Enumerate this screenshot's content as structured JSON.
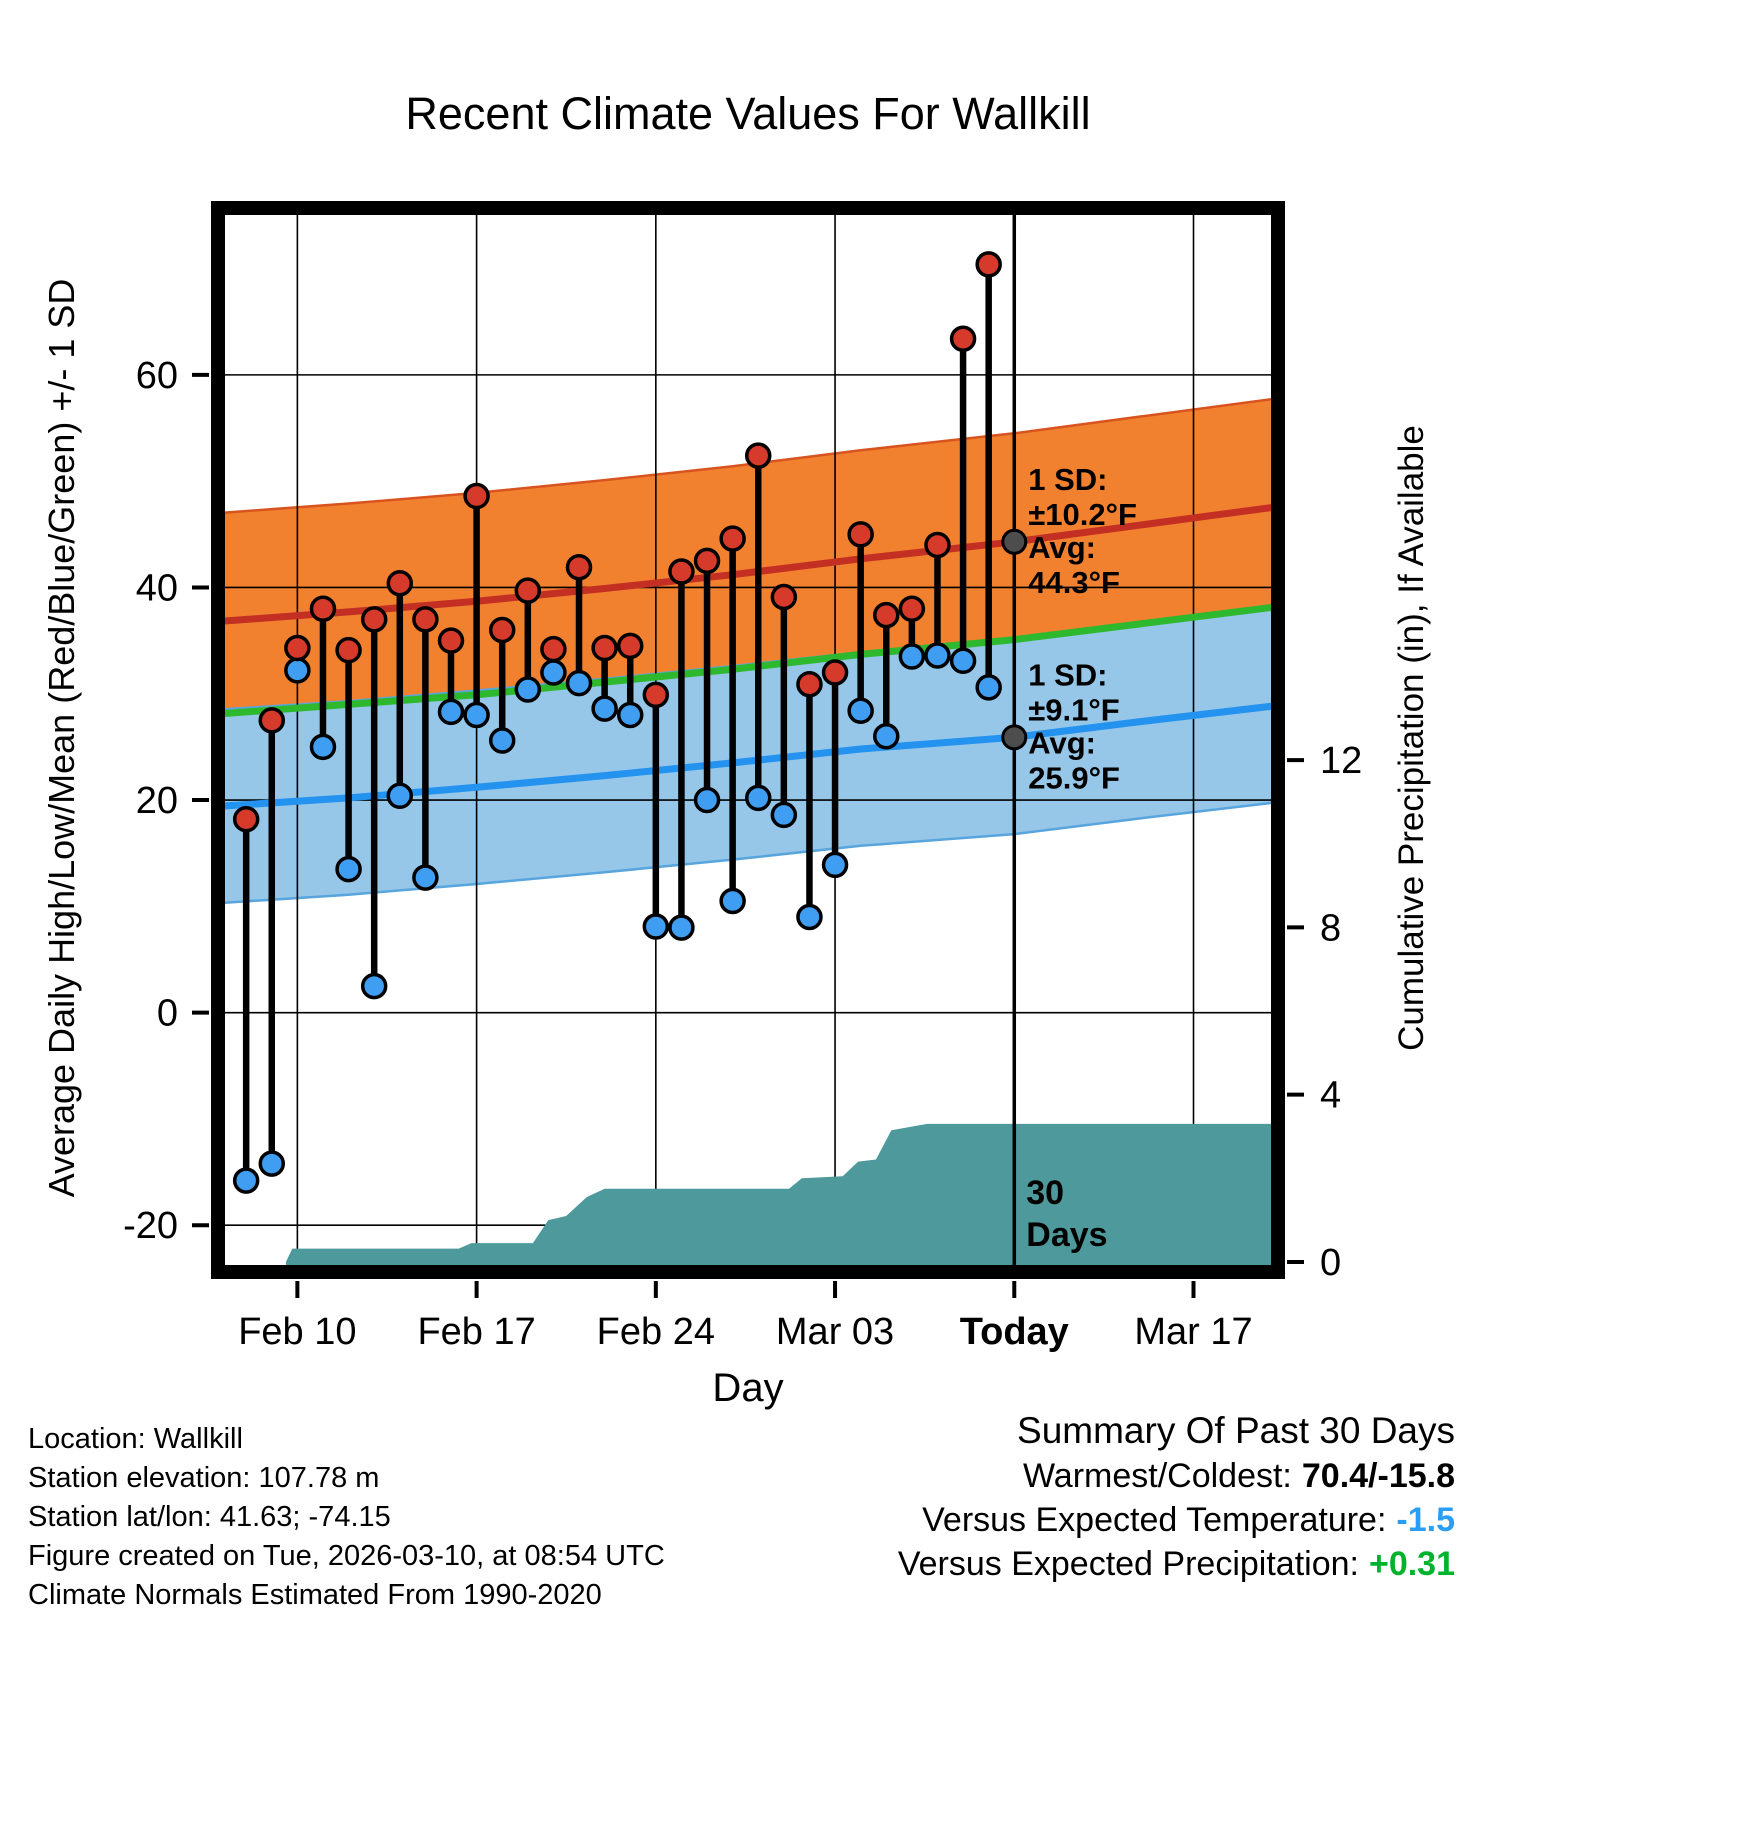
{
  "footer_left": [
    "Location: Wallkill",
    "Station elevation: 107.78 m",
    "Station lat/lon: 41.63; -74.15",
    "Figure created on Tue, 2026-03-10, at 08:54 UTC",
    "Climate Normals Estimated From 1990-2020"
  ],
  "summary": {
    "heading": "Summary Of Past 30 Days",
    "warmest_coldest_label": "Warmest/Coldest:",
    "warmest_coldest_value": "70.4/-15.8",
    "vs_temp_label": "Versus Expected Temperature:",
    "vs_temp_value": "-1.5",
    "vs_precip_label": "Versus Expected Precipitation:",
    "vs_precip_value": "+0.31"
  },
  "chart_data": {
    "type": "line",
    "title": "Recent Climate Values For Wallkill",
    "xlabel": "Day",
    "ylabel_left": "Average Daily High/Low/Mean (Red/Blue/Green) +/- 1 SD",
    "ylabel_right": "Cumulative Precipitation (in), If Available",
    "x_axis": {
      "min": -1.1,
      "max": 40.3,
      "ticks": [
        {
          "day": 2,
          "label": "Feb 10",
          "bold": false
        },
        {
          "day": 9,
          "label": "Feb 17",
          "bold": false
        },
        {
          "day": 16,
          "label": "Feb 24",
          "bold": false
        },
        {
          "day": 23,
          "label": "Mar 03",
          "bold": false
        },
        {
          "day": 30,
          "label": "Today",
          "bold": true
        },
        {
          "day": 37,
          "label": "Mar 17",
          "bold": false
        }
      ]
    },
    "temp_axis": {
      "min": -24.4,
      "max": 75.7,
      "ticks": [
        -20,
        0,
        20,
        40,
        60
      ]
    },
    "precip_axis": {
      "min": -0.24,
      "max": 25.2,
      "ticks": [
        0,
        4,
        8,
        12
      ]
    },
    "today_day": 30,
    "climatology": {
      "days": [
        -1.1,
        4,
        9,
        14,
        19,
        24,
        30,
        35,
        40.3
      ],
      "avg_high": [
        36.8,
        37.7,
        38.7,
        39.9,
        41.2,
        42.7,
        44.3,
        45.9,
        47.6
      ],
      "avg_low": [
        19.4,
        20.2,
        21.2,
        22.3,
        23.5,
        24.8,
        25.9,
        27.4,
        28.9
      ],
      "mean": [
        28.1,
        29.0,
        29.9,
        31.1,
        32.3,
        33.7,
        35.1,
        36.6,
        38.2
      ],
      "high_sd": 10.2,
      "low_sd": 9.1
    },
    "daily": [
      {
        "day": 0,
        "high": 18.2,
        "low": -15.8
      },
      {
        "day": 1,
        "high": 27.5,
        "low": -14.2
      },
      {
        "day": 2,
        "high": 34.3,
        "low": 32.2
      },
      {
        "day": 3,
        "high": 38.0,
        "low": 25.0
      },
      {
        "day": 4,
        "high": 34.1,
        "low": 13.5
      },
      {
        "day": 5,
        "high": 37.0,
        "low": 2.5
      },
      {
        "day": 6,
        "high": 40.4,
        "low": 20.4
      },
      {
        "day": 7,
        "high": 37.0,
        "low": 12.7
      },
      {
        "day": 8,
        "high": 35.0,
        "low": 28.3
      },
      {
        "day": 9,
        "high": 48.6,
        "low": 28.0
      },
      {
        "day": 10,
        "high": 36.0,
        "low": 25.6
      },
      {
        "day": 11,
        "high": 39.7,
        "low": 30.4
      },
      {
        "day": 12,
        "high": 34.2,
        "low": 32.0
      },
      {
        "day": 13,
        "high": 41.9,
        "low": 31.0
      },
      {
        "day": 14,
        "high": 34.3,
        "low": 28.6
      },
      {
        "day": 15,
        "high": 34.5,
        "low": 28.0
      },
      {
        "day": 16,
        "high": 29.9,
        "low": 8.1
      },
      {
        "day": 17,
        "high": 41.5,
        "low": 8.0
      },
      {
        "day": 18,
        "high": 42.5,
        "low": 20.0
      },
      {
        "day": 19,
        "high": 44.6,
        "low": 10.5
      },
      {
        "day": 20,
        "high": 52.4,
        "low": 20.2
      },
      {
        "day": 21,
        "high": 39.1,
        "low": 18.6
      },
      {
        "day": 22,
        "high": 30.9,
        "low": 9.0
      },
      {
        "day": 23,
        "high": 32.0,
        "low": 13.9
      },
      {
        "day": 24,
        "high": 45.0,
        "low": 28.4
      },
      {
        "day": 25,
        "high": 37.4,
        "low": 26.0
      },
      {
        "day": 26,
        "high": 38.0,
        "low": 33.5
      },
      {
        "day": 27,
        "high": 44.0,
        "low": 33.6
      },
      {
        "day": 28,
        "high": 63.4,
        "low": 33.1
      },
      {
        "day": 29,
        "high": 70.4,
        "low": 30.6
      }
    ],
    "precip_steps": [
      {
        "day": 1.55,
        "value": 0
      },
      {
        "day": 1.8,
        "value": 0.32
      },
      {
        "day": 8.3,
        "value": 0.32
      },
      {
        "day": 8.8,
        "value": 0.45
      },
      {
        "day": 11.2,
        "value": 0.45
      },
      {
        "day": 11.8,
        "value": 1.0
      },
      {
        "day": 12.5,
        "value": 1.1
      },
      {
        "day": 13.3,
        "value": 1.55
      },
      {
        "day": 14.0,
        "value": 1.75
      },
      {
        "day": 21.2,
        "value": 1.75
      },
      {
        "day": 21.7,
        "value": 2.0
      },
      {
        "day": 23.3,
        "value": 2.05
      },
      {
        "day": 23.9,
        "value": 2.4
      },
      {
        "day": 24.6,
        "value": 2.45
      },
      {
        "day": 25.2,
        "value": 3.15
      },
      {
        "day": 26.6,
        "value": 3.3
      },
      {
        "day": 40.3,
        "value": 3.3
      }
    ],
    "annotations": {
      "high": {
        "lines": [
          "1 SD:",
          "±10.2°F",
          "Avg:",
          "44.3°F"
        ],
        "avg_value": 44.3
      },
      "low": {
        "lines": [
          "1 SD:",
          "±9.1°F",
          "Avg:",
          "25.9°F"
        ],
        "avg_value": 25.9
      },
      "days_label": [
        "30",
        "Days"
      ]
    },
    "colors": {
      "high_band": "#f1812f",
      "high_band_edge": "#d9531e",
      "high_line": "#c42f24",
      "low_band": "#96c7e8",
      "low_band_edge": "#58a5dd",
      "low_line": "#2492ef",
      "mean_line": "#2eb82e",
      "high_dot": "#d63a2a",
      "low_dot": "#3f9ef2",
      "precip_area": "#4d999b",
      "annotation_text": "#808080",
      "avg_marker": "#4d4d4d",
      "vs_temp": "#2a9df4",
      "vs_precip": "#00b32c"
    }
  }
}
